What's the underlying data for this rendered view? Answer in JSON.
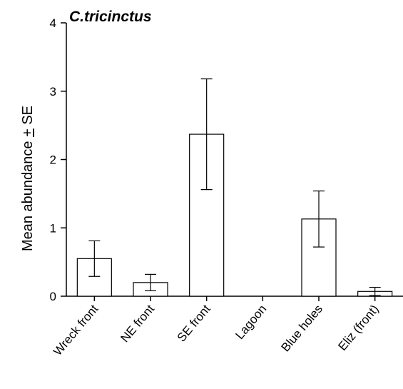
{
  "chart_data": {
    "type": "bar",
    "title": "C.tricinctus",
    "xlabel": "",
    "ylabel": "Mean abundance + SE",
    "ylabel_parts": {
      "prefix": "Mean abundance ",
      "pm": "+",
      "suffix": " SE"
    },
    "categories": [
      "Wreck front",
      "NE front",
      "SE front",
      "Lagoon",
      "Blue holes",
      "Eliz (front)"
    ],
    "values": [
      0.55,
      0.2,
      2.37,
      0,
      1.13,
      0.07
    ],
    "errors": [
      0.26,
      0.12,
      0.81,
      0,
      0.41,
      0.06
    ],
    "ylim": [
      0,
      4
    ],
    "yticks": [
      0,
      1,
      2,
      3,
      4
    ],
    "ytick_labels": [
      "0",
      "1",
      "2",
      "3",
      "4"
    ],
    "grid": false,
    "legend": "none",
    "colors": {
      "bar_fill": "#ffffff",
      "bar_stroke": "#000000",
      "axis": "#000000"
    }
  }
}
